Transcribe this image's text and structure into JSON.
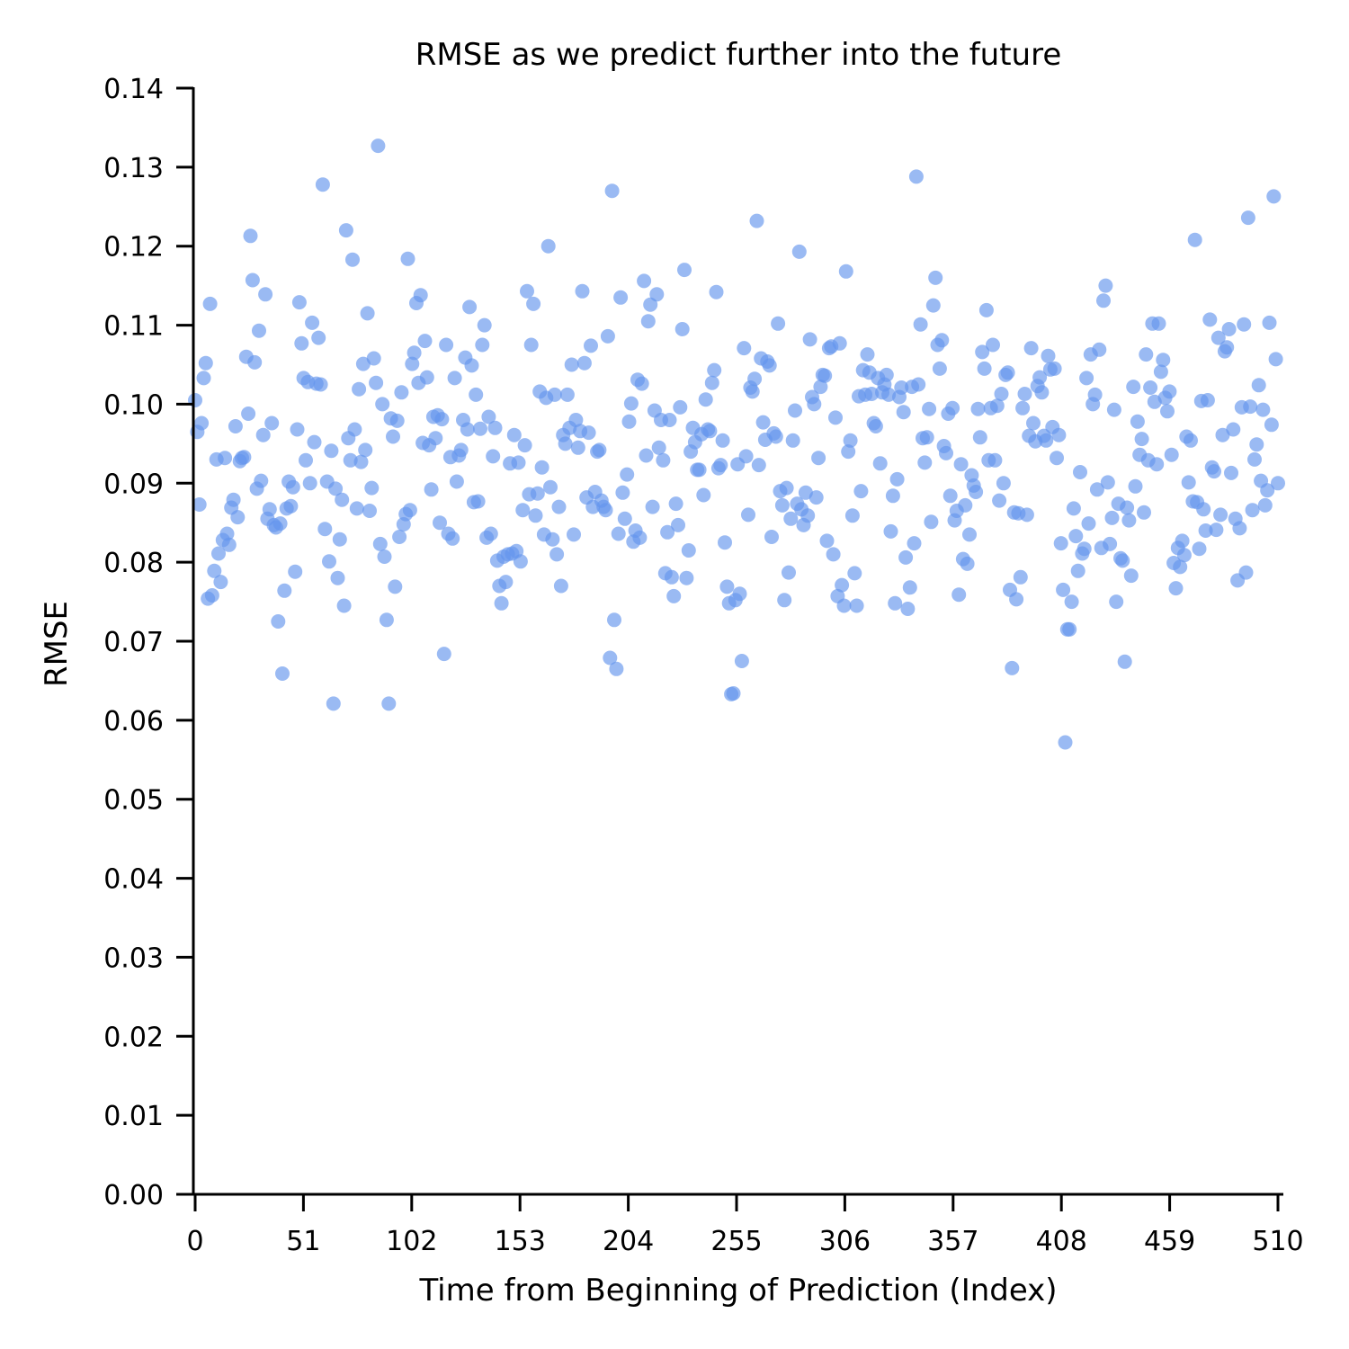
{
  "chart_data": {
    "type": "scatter",
    "title": "RMSE as we predict further into the future",
    "xlabel": "Time from Beginning of Prediction (Index)",
    "ylabel": "RMSE",
    "xlim": [
      0,
      510
    ],
    "ylim": [
      0,
      0.14
    ],
    "xticks": [
      0,
      51,
      102,
      153,
      204,
      255,
      306,
      357,
      408,
      459,
      510
    ],
    "xtick_labels": [
      "0",
      "51",
      "102",
      "153",
      "204",
      "255",
      "306",
      "357",
      "408",
      "459",
      "510"
    ],
    "yticks": [
      0,
      0.01,
      0.02,
      0.03,
      0.04,
      0.05,
      0.06,
      0.07,
      0.08,
      0.09,
      0.1,
      0.11,
      0.12,
      0.13,
      0.14
    ],
    "ytick_labels": [
      "0.00",
      "0.01",
      "0.02",
      "0.03",
      "0.04",
      "0.05",
      "0.06",
      "0.07",
      "0.08",
      "0.09",
      "0.10",
      "0.11",
      "0.12",
      "0.13",
      "0.14"
    ],
    "grid": false,
    "color": "#6495ED",
    "y": [
      0.1005,
      0.0965,
      0.0873,
      0.0976,
      0.1033,
      0.1052,
      0.0754,
      0.1127,
      0.0758,
      0.0789,
      0.093,
      0.0811,
      0.0775,
      0.0828,
      0.0932,
      0.0836,
      0.0822,
      0.0869,
      0.0879,
      0.0972,
      0.0857,
      0.0928,
      0.0932,
      0.0933,
      0.106,
      0.0988,
      0.1213,
      0.1157,
      0.1053,
      0.0893,
      0.1093,
      0.0903,
      0.0961,
      0.1139,
      0.0855,
      0.0867,
      0.0976,
      0.0847,
      0.0844,
      0.0725,
      0.0849,
      0.0659,
      0.0764,
      0.0868,
      0.0902,
      0.0871,
      0.0895,
      0.0788,
      0.0968,
      0.1129,
      0.1077,
      0.1033,
      0.0929,
      0.1028,
      0.09,
      0.1103,
      0.0952,
      0.1026,
      0.1084,
      0.1025,
      0.1278,
      0.0842,
      0.0902,
      0.0801,
      0.0941,
      0.0621,
      0.0893,
      0.078,
      0.0829,
      0.0879,
      0.0745,
      0.122,
      0.0957,
      0.0929,
      0.1183,
      0.0968,
      0.0868,
      0.1019,
      0.0927,
      0.1051,
      0.0942,
      0.1115,
      0.0865,
      0.0894,
      0.1058,
      0.1027,
      0.1327,
      0.0823,
      0.1,
      0.0807,
      0.0727,
      0.0621,
      0.0982,
      0.0959,
      0.0769,
      0.0979,
      0.0832,
      0.1015,
      0.0848,
      0.0861,
      0.1184,
      0.0866,
      0.1051,
      0.1065,
      0.1128,
      0.1027,
      0.1138,
      0.0951,
      0.108,
      0.1034,
      0.0948,
      0.0892,
      0.0984,
      0.0957,
      0.0986,
      0.085,
      0.0981,
      0.0684,
      0.1075,
      0.0836,
      0.0933,
      0.083,
      0.1033,
      0.0902,
      0.0935,
      0.0942,
      0.098,
      0.1059,
      0.0968,
      0.1123,
      0.1049,
      0.0876,
      0.1012,
      0.0877,
      0.0969,
      0.1075,
      0.11,
      0.0831,
      0.0984,
      0.0836,
      0.0934,
      0.097,
      0.0802,
      0.077,
      0.0748,
      0.0807,
      0.0775,
      0.081,
      0.0925,
      0.0811,
      0.0961,
      0.0814,
      0.0926,
      0.0801,
      0.0866,
      0.0948,
      0.1143,
      0.0886,
      0.1075,
      0.1127,
      0.0859,
      0.0887,
      0.1016,
      0.092,
      0.0835,
      0.1008,
      0.12,
      0.0895,
      0.0829,
      0.1012,
      0.081,
      0.087,
      0.077,
      0.0961,
      0.095,
      0.1012,
      0.097,
      0.105,
      0.0835,
      0.098,
      0.0945,
      0.0966,
      0.1143,
      0.1052,
      0.0882,
      0.0964,
      0.1074,
      0.087,
      0.0889,
      0.094,
      0.0942,
      0.0878,
      0.087,
      0.0866,
      0.1086,
      0.0679,
      0.127,
      0.0727,
      0.0665,
      0.0836,
      0.1135,
      0.0888,
      0.0855,
      0.0911,
      0.0978,
      0.1001,
      0.0826,
      0.084,
      0.1031,
      0.0831,
      0.1026,
      0.1156,
      0.0935,
      0.1105,
      0.1126,
      0.087,
      0.0992,
      0.1139,
      0.0945,
      0.098,
      0.0929,
      0.0786,
      0.0838,
      0.098,
      0.0781,
      0.0757,
      0.0874,
      0.0847,
      0.0996,
      0.1095,
      0.117,
      0.078,
      0.0815,
      0.094,
      0.097,
      0.0952,
      0.0917,
      0.0917,
      0.0962,
      0.0885,
      0.1006,
      0.0968,
      0.0966,
      0.1027,
      0.1043,
      0.1142,
      0.0919,
      0.0923,
      0.0954,
      0.0825,
      0.0769,
      0.0748,
      0.0633,
      0.0634,
      0.0752,
      0.0924,
      0.076,
      0.0675,
      0.1071,
      0.0934,
      0.086,
      0.1021,
      0.1016,
      0.1032,
      0.1232,
      0.0923,
      0.1058,
      0.0977,
      0.0955,
      0.1054,
      0.1049,
      0.0832,
      0.0963,
      0.0959,
      0.1102,
      0.089,
      0.0872,
      0.0752,
      0.0894,
      0.0787,
      0.0855,
      0.0954,
      0.0992,
      0.0874,
      0.1193,
      0.0867,
      0.0847,
      0.0888,
      0.0859,
      0.1082,
      0.1009,
      0.1,
      0.0882,
      0.0932,
      0.1022,
      0.1037,
      0.1036,
      0.0827,
      0.1071,
      0.1073,
      0.081,
      0.0983,
      0.0757,
      0.1077,
      0.0771,
      0.0745,
      0.1168,
      0.094,
      0.0954,
      0.0859,
      0.0786,
      0.0745,
      0.101,
      0.089,
      0.1043,
      0.1012,
      0.1063,
      0.104,
      0.1013,
      0.0976,
      0.0972,
      0.1033,
      0.0925,
      0.1015,
      0.1025,
      0.1037,
      0.1012,
      0.0839,
      0.0884,
      0.0748,
      0.0905,
      0.1009,
      0.1021,
      0.099,
      0.0806,
      0.0741,
      0.0768,
      0.1022,
      0.0824,
      0.1288,
      0.1025,
      0.1101,
      0.0957,
      0.0926,
      0.0958,
      0.0994,
      0.0851,
      0.1125,
      0.116,
      0.1075,
      0.1045,
      0.1081,
      0.0947,
      0.0938,
      0.0988,
      0.0884,
      0.0995,
      0.0853,
      0.0865,
      0.0759,
      0.0924,
      0.0804,
      0.0872,
      0.0798,
      0.0835,
      0.091,
      0.0897,
      0.0889,
      0.0994,
      0.0958,
      0.1066,
      0.1045,
      0.1119,
      0.0929,
      0.0995,
      0.1075,
      0.0929,
      0.0998,
      0.0878,
      0.1013,
      0.09,
      0.1037,
      0.104,
      0.0765,
      0.0666,
      0.0863,
      0.0753,
      0.0862,
      0.0781,
      0.0995,
      0.1013,
      0.086,
      0.096,
      0.1071,
      0.0976,
      0.0953,
      0.1023,
      0.1034,
      0.1015,
      0.096,
      0.0954,
      0.1061,
      0.1044,
      0.0971,
      0.1045,
      0.0932,
      0.0961,
      0.0824,
      0.0765,
      0.0572,
      0.0715,
      0.0715,
      0.075,
      0.0868,
      0.0833,
      0.0789,
      0.0914,
      0.0811,
      0.0817,
      0.1033,
      0.0849,
      0.1063,
      0.1,
      0.1012,
      0.0892,
      0.1069,
      0.0818,
      0.1131,
      0.115,
      0.0901,
      0.0823,
      0.0856,
      0.0993,
      0.075,
      0.0874,
      0.0805,
      0.0802,
      0.0674,
      0.0869,
      0.0853,
      0.0783,
      0.1022,
      0.0896,
      0.0978,
      0.0936,
      0.0956,
      0.0863,
      0.1063,
      0.0929,
      0.1021,
      0.1102,
      0.1003,
      0.0924,
      0.1102,
      0.1041,
      0.1056,
      0.1008,
      0.0991,
      0.1016,
      0.0936,
      0.0799,
      0.0767,
      0.0818,
      0.0794,
      0.0827,
      0.0809,
      0.0959,
      0.0901,
      0.0954,
      0.0877,
      0.1208,
      0.0876,
      0.0817,
      0.1004,
      0.0867,
      0.084,
      0.1005,
      0.1107,
      0.092,
      0.0915,
      0.0841,
      0.1084,
      0.086,
      0.0961,
      0.1067,
      0.1072,
      0.1095,
      0.0913,
      0.0968,
      0.0855,
      0.0777,
      0.0843,
      0.0996,
      0.1101,
      0.0787,
      0.1236,
      0.0997,
      0.0866,
      0.093,
      0.0949,
      0.1024,
      0.0903,
      0.0993,
      0.0872,
      0.0891,
      0.1103,
      0.0974,
      0.1263,
      0.1057,
      0.09
    ]
  }
}
